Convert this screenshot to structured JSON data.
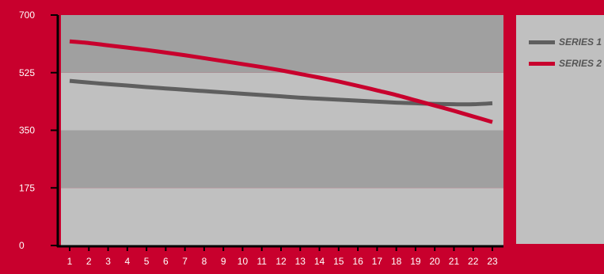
{
  "chart_data": {
    "type": "line",
    "categories": [
      "1",
      "2",
      "3",
      "4",
      "5",
      "6",
      "7",
      "8",
      "9",
      "10",
      "11",
      "12",
      "13",
      "14",
      "15",
      "16",
      "17",
      "18",
      "19",
      "20",
      "21",
      "22",
      "23"
    ],
    "ylim": [
      0,
      700
    ],
    "yticks": [
      "0",
      "175",
      "350",
      "525",
      "700"
    ],
    "series": [
      {
        "name": "SERIES 1",
        "color": "#5f5f5f",
        "values": [
          500,
          495,
          490,
          486,
          481,
          477,
          473,
          469,
          465,
          461,
          457,
          453,
          449,
          446,
          443,
          440,
          437,
          434,
          432,
          430,
          429,
          429,
          432
        ]
      },
      {
        "name": "SERIES 2",
        "color": "#c8002d",
        "values": [
          620,
          615,
          608,
          601,
          594,
          586,
          578,
          569,
          560,
          551,
          542,
          532,
          521,
          510,
          498,
          485,
          471,
          457,
          441,
          425,
          409,
          392,
          375
        ]
      }
    ],
    "grid": "horizontal bands",
    "legend": "right"
  },
  "colors": {
    "background": "#c8002d",
    "band_dark": "#a0a0a0",
    "band_light": "#c0c0c0",
    "axis": "#000000"
  }
}
